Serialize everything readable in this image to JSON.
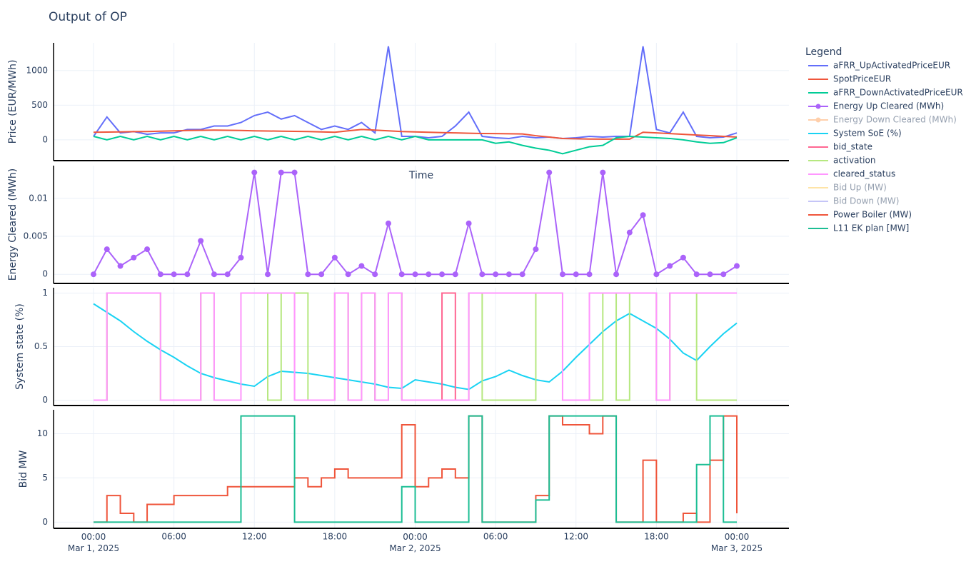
{
  "chart_data": {
    "type": "line",
    "title": "Output of OP",
    "legend_title": "Legend",
    "x_title": "Time",
    "line_width": 2,
    "grid": true,
    "x": [
      "2025-03-01 00:00",
      "2025-03-01 01:00",
      "2025-03-01 02:00",
      "2025-03-01 03:00",
      "2025-03-01 04:00",
      "2025-03-01 05:00",
      "2025-03-01 06:00",
      "2025-03-01 07:00",
      "2025-03-01 08:00",
      "2025-03-01 09:00",
      "2025-03-01 10:00",
      "2025-03-01 11:00",
      "2025-03-01 12:00",
      "2025-03-01 13:00",
      "2025-03-01 14:00",
      "2025-03-01 15:00",
      "2025-03-01 16:00",
      "2025-03-01 17:00",
      "2025-03-01 18:00",
      "2025-03-01 19:00",
      "2025-03-01 20:00",
      "2025-03-01 21:00",
      "2025-03-01 22:00",
      "2025-03-01 23:00",
      "2025-03-02 00:00",
      "2025-03-02 01:00",
      "2025-03-02 02:00",
      "2025-03-02 03:00",
      "2025-03-02 04:00",
      "2025-03-02 05:00",
      "2025-03-02 06:00",
      "2025-03-02 07:00",
      "2025-03-02 08:00",
      "2025-03-02 09:00",
      "2025-03-02 10:00",
      "2025-03-02 11:00",
      "2025-03-02 12:00",
      "2025-03-02 13:00",
      "2025-03-02 14:00",
      "2025-03-02 15:00",
      "2025-03-02 16:00",
      "2025-03-02 17:00",
      "2025-03-02 18:00",
      "2025-03-02 19:00",
      "2025-03-02 20:00",
      "2025-03-02 21:00",
      "2025-03-02 22:00",
      "2025-03-02 23:00",
      "2025-03-03 00:00"
    ],
    "xticks": [
      {
        "value": "2025-03-01 00:00",
        "label": "00:00\nMar 1, 2025"
      },
      {
        "value": "2025-03-01 06:00",
        "label": "06:00"
      },
      {
        "value": "2025-03-01 12:00",
        "label": "12:00"
      },
      {
        "value": "2025-03-01 18:00",
        "label": "18:00"
      },
      {
        "value": "2025-03-02 00:00",
        "label": "00:00\nMar 2, 2025"
      },
      {
        "value": "2025-03-02 06:00",
        "label": "06:00"
      },
      {
        "value": "2025-03-02 12:00",
        "label": "12:00"
      },
      {
        "value": "2025-03-02 18:00",
        "label": "18:00"
      },
      {
        "value": "2025-03-03 00:00",
        "label": "00:00\nMar 3, 2025"
      }
    ],
    "panels": [
      {
        "ylabel": "Price (EUR/MWh)",
        "ylim": [
          -300,
          1400
        ],
        "yticks": [
          0,
          500,
          1000
        ],
        "series": [
          {
            "name": "aFRR_UpActivatedPriceEUR",
            "color": "#636efa",
            "values": [
              50,
              330,
              100,
              120,
              80,
              100,
              100,
              150,
              150,
              200,
              200,
              250,
              350,
              400,
              300,
              350,
              250,
              150,
              200,
              150,
              250,
              100,
              1350,
              50,
              50,
              30,
              50,
              200,
              400,
              50,
              30,
              20,
              50,
              30,
              40,
              20,
              30,
              50,
              40,
              50,
              50,
              1350,
              150,
              100,
              400,
              50,
              30,
              40,
              100
            ]
          },
          {
            "name": "SpotPriceEUR",
            "color": "#ef553b",
            "values": [
              110,
              112,
              115,
              118,
              120,
              125,
              130,
              135,
              138,
              140,
              138,
              135,
              130,
              128,
              125,
              122,
              120,
              115,
              110,
              130,
              150,
              140,
              130,
              120,
              115,
              110,
              105,
              100,
              95,
              92,
              90,
              88,
              85,
              60,
              40,
              20,
              15,
              12,
              10,
              10,
              10,
              110,
              100,
              90,
              80,
              70,
              60,
              50,
              40
            ]
          },
          {
            "name": "aFRR_DownActivatedPriceEUR",
            "color": "#00cc96",
            "values": [
              50,
              0,
              50,
              0,
              50,
              0,
              50,
              0,
              50,
              0,
              50,
              0,
              50,
              0,
              50,
              0,
              50,
              0,
              50,
              0,
              50,
              0,
              50,
              0,
              50,
              0,
              0,
              0,
              0,
              0,
              -50,
              -30,
              -80,
              -120,
              -150,
              -200,
              -150,
              -100,
              -80,
              30,
              50,
              40,
              30,
              20,
              0,
              -30,
              -50,
              -40,
              30
            ]
          }
        ]
      },
      {
        "ylabel": "Energy Cleared (MWh)",
        "ylim": [
          -0.0012,
          0.0143
        ],
        "yticks": [
          0,
          0.005,
          0.01
        ],
        "series": [
          {
            "name": "Energy Up Cleared (MWh)",
            "color": "#ab63fa",
            "markers": true,
            "values": [
              0,
              0.0033,
              0.0011,
              0.0022,
              0.0033,
              0,
              0,
              0,
              0.0044,
              0,
              0,
              0.0022,
              0.0134,
              0,
              0.0134,
              0.0134,
              0,
              0,
              0.0022,
              0,
              0.0011,
              0,
              0.0067,
              0,
              0,
              0,
              0,
              0,
              0.0067,
              0,
              0,
              0,
              0,
              0.0033,
              0.0134,
              0,
              0,
              0,
              0.0134,
              0,
              0.0055,
              0.0078,
              0,
              0.0011,
              0.0022,
              0,
              0,
              0,
              0.0011
            ]
          },
          {
            "name": "Energy Down Cleared (MWh)",
            "color": "#ffa15a",
            "visible": "legendonly"
          }
        ]
      },
      {
        "ylabel": "System state (%)",
        "ylim": [
          -0.05,
          1.05
        ],
        "yticks": [
          0,
          0.5,
          1
        ],
        "series": [
          {
            "name": "System SoE (%)",
            "color": "#19d3f3",
            "values": [
              0.9,
              0.82,
              0.74,
              0.64,
              0.55,
              0.47,
              0.4,
              0.32,
              0.25,
              0.21,
              0.18,
              0.15,
              0.13,
              0.22,
              0.27,
              0.26,
              0.25,
              0.23,
              0.21,
              0.19,
              0.17,
              0.15,
              0.12,
              0.11,
              0.19,
              0.17,
              0.15,
              0.12,
              0.1,
              0.18,
              0.22,
              0.28,
              0.23,
              0.19,
              0.17,
              0.27,
              0.4,
              0.52,
              0.64,
              0.74,
              0.81,
              0.74,
              0.67,
              0.57,
              0.44,
              0.37,
              0.5,
              0.62,
              0.72
            ]
          },
          {
            "name": "bid_state",
            "color": "#ff6692",
            "step": true,
            "values": [
              0,
              1,
              1,
              1,
              1,
              0,
              0,
              0,
              1,
              0,
              0,
              1,
              1,
              1,
              1,
              0,
              0,
              0,
              1,
              0,
              1,
              0,
              1,
              0,
              0,
              0,
              1,
              0,
              1,
              1,
              1,
              1,
              1,
              1,
              1,
              0,
              0,
              1,
              1,
              1,
              1,
              1,
              0,
              1,
              1,
              1,
              1,
              1,
              1
            ]
          },
          {
            "name": "activation",
            "color": "#b6e880",
            "step": true,
            "values": [
              0,
              1,
              1,
              1,
              1,
              0,
              0,
              0,
              1,
              0,
              0,
              1,
              1,
              0,
              1,
              1,
              0,
              0,
              1,
              0,
              1,
              0,
              1,
              0,
              0,
              0,
              0,
              0,
              1,
              0,
              0,
              0,
              0,
              1,
              1,
              0,
              0,
              0,
              1,
              0,
              1,
              1,
              0,
              1,
              1,
              0,
              0,
              0,
              0
            ]
          },
          {
            "name": "cleared_status",
            "color": "#ff97ff",
            "step": true,
            "values": [
              0,
              1,
              1,
              1,
              1,
              0,
              0,
              0,
              1,
              0,
              0,
              1,
              1,
              1,
              1,
              0,
              0,
              0,
              1,
              0,
              1,
              0,
              1,
              0,
              0,
              0,
              0,
              0,
              1,
              1,
              1,
              1,
              1,
              1,
              1,
              0,
              0,
              1,
              1,
              1,
              1,
              1,
              0,
              1,
              1,
              1,
              1,
              1,
              1
            ]
          }
        ]
      },
      {
        "ylabel": "Bid MW",
        "ylim": [
          -0.7,
          12.7
        ],
        "yticks": [
          0,
          5,
          10
        ],
        "series": [
          {
            "name": "Bid Up (MW)",
            "color": "#fecb52",
            "visible": "legendonly"
          },
          {
            "name": "Bid Down (MW)",
            "color": "#8c8cf0",
            "visible": "legendonly"
          },
          {
            "name": "Power Boiler (MW)",
            "color": "#ef553b",
            "step": true,
            "values": [
              0,
              3,
              1,
              0,
              2,
              2,
              3,
              3,
              3,
              3,
              4,
              4,
              4,
              4,
              4,
              5,
              4,
              5,
              6,
              5,
              5,
              5,
              5,
              11,
              4,
              5,
              6,
              5,
              12,
              0,
              0,
              0,
              0,
              3,
              12,
              11,
              11,
              10,
              12,
              0,
              0,
              7,
              0,
              0,
              1,
              0,
              7,
              12,
              1
            ]
          },
          {
            "name": "L11 EK plan [MW]",
            "color": "#1cbe94",
            "step": true,
            "values": [
              0,
              0,
              0,
              0,
              0,
              0,
              0,
              0,
              0,
              0,
              0,
              12,
              12,
              12,
              12,
              0,
              0,
              0,
              0,
              0,
              0,
              0,
              0,
              4,
              0,
              0,
              0,
              0,
              12,
              0,
              0,
              0,
              0,
              2.5,
              12,
              12,
              12,
              12,
              12,
              0,
              0,
              0,
              0,
              0,
              0,
              6.5,
              12,
              0,
              0
            ]
          }
        ]
      }
    ]
  }
}
